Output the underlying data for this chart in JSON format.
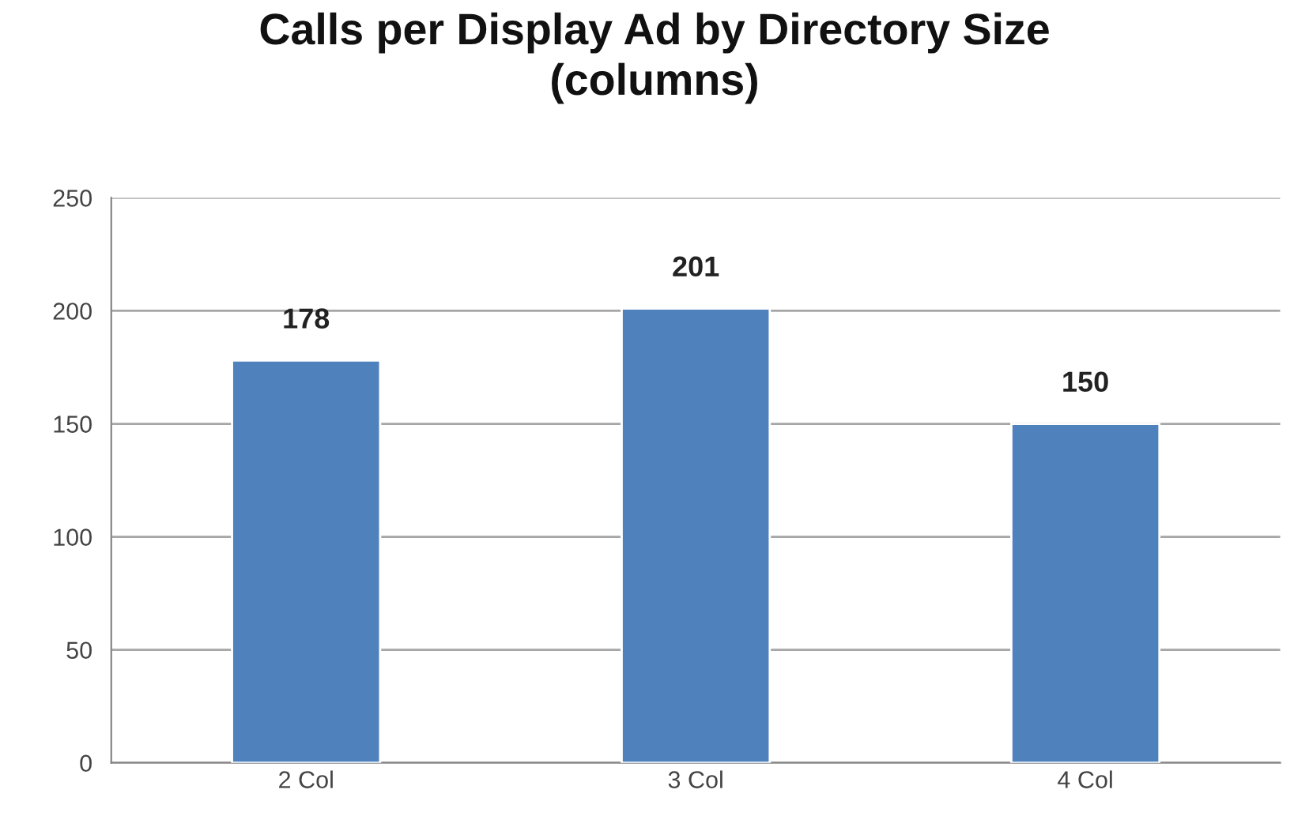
{
  "chart_data": {
    "type": "bar",
    "title": "Calls per Display Ad by Directory Size\n(columns)",
    "categories": [
      "2 Col",
      "3 Col",
      "4 Col"
    ],
    "values": [
      178,
      201,
      150
    ],
    "color": "#4f81bd",
    "ylim": [
      0,
      250
    ],
    "yticks": [
      0,
      50,
      100,
      150,
      200,
      250
    ],
    "grid": "y",
    "data_labels": true,
    "legend": false
  }
}
